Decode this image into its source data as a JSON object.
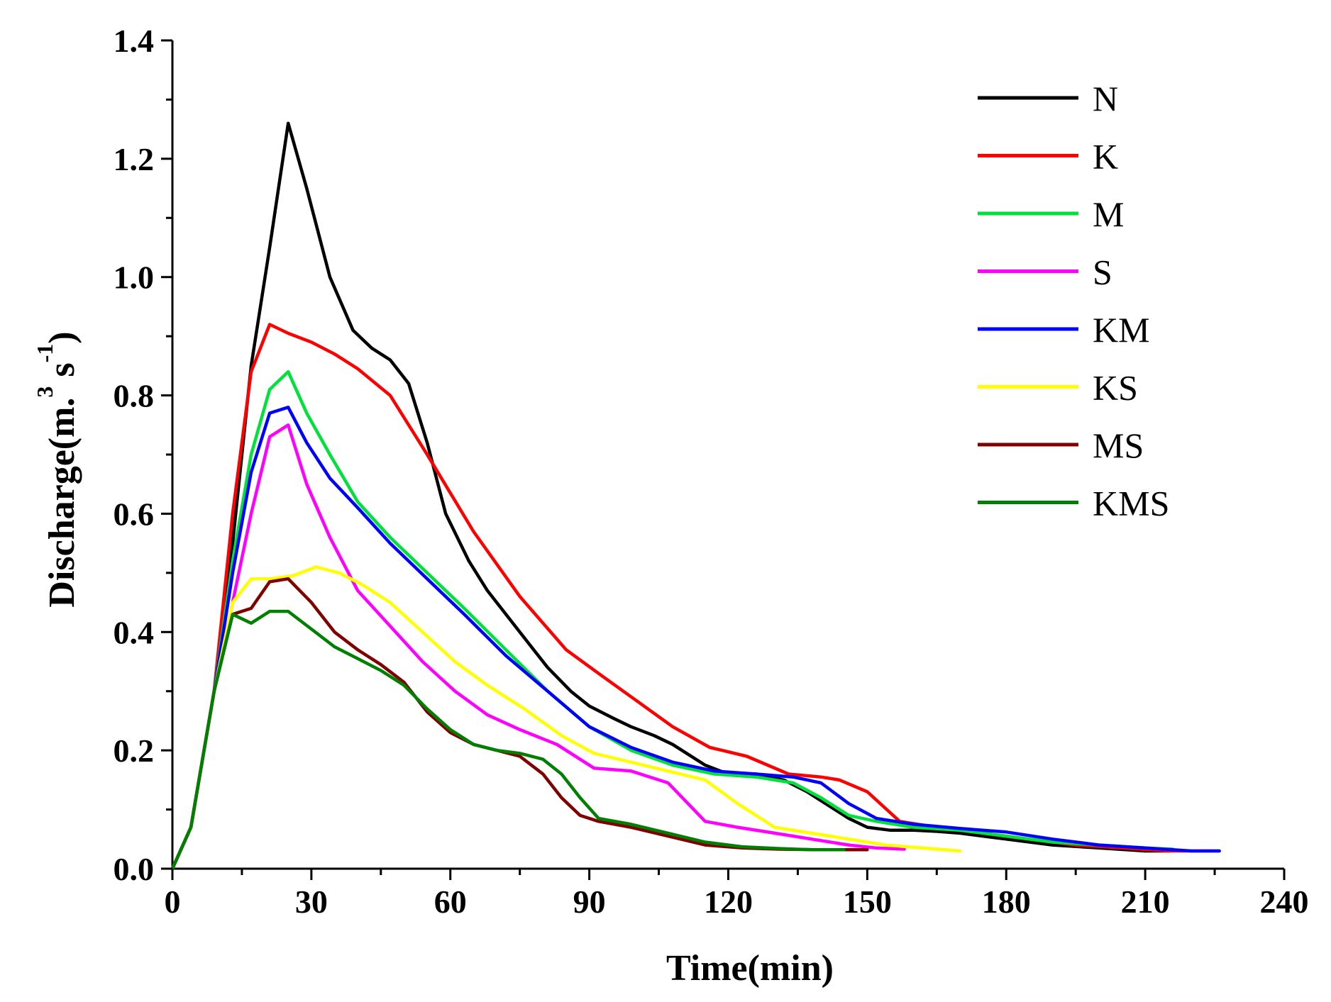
{
  "chart_data": {
    "type": "line",
    "title": "",
    "xlabel": "Time(min)",
    "ylabel": {
      "main": "Discharge(m.",
      "sup1": "3",
      "mid": " s",
      "sup2": "-1",
      "close": ")"
    },
    "xlim": [
      0,
      240
    ],
    "ylim": [
      0,
      1.4
    ],
    "xticks": [
      0,
      30,
      60,
      90,
      120,
      150,
      180,
      210,
      240
    ],
    "yticks": [
      0.0,
      0.2,
      0.4,
      0.6,
      0.8,
      1.0,
      1.2,
      1.4
    ],
    "xtick_labels": [
      "0",
      "30",
      "60",
      "90",
      "120",
      "150",
      "180",
      "210",
      "240"
    ],
    "ytick_labels": [
      "0.0",
      "0.2",
      "0.4",
      "0.6",
      "0.8",
      "1.0",
      "1.2",
      "1.4"
    ],
    "grid": false,
    "legend_position": "top-right",
    "series": [
      {
        "name": "N",
        "color": "#000000",
        "points": [
          [
            0,
            0
          ],
          [
            4,
            0.07
          ],
          [
            9,
            0.3
          ],
          [
            13,
            0.55
          ],
          [
            17,
            0.85
          ],
          [
            21,
            1.05
          ],
          [
            25,
            1.26
          ],
          [
            29,
            1.15
          ],
          [
            34,
            1.0
          ],
          [
            39,
            0.91
          ],
          [
            43,
            0.88
          ],
          [
            47,
            0.86
          ],
          [
            51,
            0.82
          ],
          [
            55,
            0.72
          ],
          [
            59,
            0.6
          ],
          [
            64,
            0.52
          ],
          [
            68,
            0.47
          ],
          [
            73,
            0.42
          ],
          [
            77,
            0.38
          ],
          [
            81,
            0.34
          ],
          [
            86,
            0.3
          ],
          [
            90,
            0.275
          ],
          [
            95,
            0.255
          ],
          [
            99,
            0.24
          ],
          [
            104,
            0.225
          ],
          [
            108,
            0.21
          ],
          [
            115,
            0.175
          ],
          [
            120,
            0.16
          ],
          [
            126,
            0.16
          ],
          [
            132,
            0.15
          ],
          [
            137,
            0.13
          ],
          [
            141,
            0.11
          ],
          [
            146,
            0.085
          ],
          [
            150,
            0.07
          ],
          [
            155,
            0.065
          ],
          [
            160,
            0.065
          ],
          [
            165,
            0.063
          ],
          [
            170,
            0.06
          ],
          [
            175,
            0.055
          ],
          [
            180,
            0.05
          ],
          [
            190,
            0.04
          ],
          [
            200,
            0.035
          ],
          [
            210,
            0.03
          ],
          [
            215,
            0.03
          ]
        ]
      },
      {
        "name": "K",
        "color": "#ff0000",
        "points": [
          [
            0,
            0
          ],
          [
            4,
            0.07
          ],
          [
            9,
            0.3
          ],
          [
            13,
            0.6
          ],
          [
            17,
            0.84
          ],
          [
            21,
            0.92
          ],
          [
            25,
            0.905
          ],
          [
            30,
            0.89
          ],
          [
            35,
            0.87
          ],
          [
            40,
            0.845
          ],
          [
            47,
            0.8
          ],
          [
            55,
            0.7
          ],
          [
            65,
            0.57
          ],
          [
            75,
            0.46
          ],
          [
            85,
            0.37
          ],
          [
            92,
            0.33
          ],
          [
            100,
            0.285
          ],
          [
            108,
            0.24
          ],
          [
            116,
            0.205
          ],
          [
            124,
            0.19
          ],
          [
            133,
            0.16
          ],
          [
            140,
            0.155
          ],
          [
            144,
            0.15
          ],
          [
            150,
            0.13
          ],
          [
            157,
            0.08
          ],
          [
            165,
            0.07
          ],
          [
            175,
            0.06
          ],
          [
            185,
            0.05
          ],
          [
            195,
            0.04
          ],
          [
            205,
            0.035
          ],
          [
            215,
            0.03
          ],
          [
            226,
            0.03
          ]
        ]
      },
      {
        "name": "M",
        "color": "#00e13c",
        "points": [
          [
            0,
            0
          ],
          [
            4,
            0.07
          ],
          [
            9,
            0.3
          ],
          [
            13,
            0.52
          ],
          [
            17,
            0.7
          ],
          [
            21,
            0.81
          ],
          [
            25,
            0.84
          ],
          [
            29,
            0.77
          ],
          [
            34,
            0.7
          ],
          [
            40,
            0.62
          ],
          [
            47,
            0.56
          ],
          [
            55,
            0.5
          ],
          [
            63,
            0.44
          ],
          [
            72,
            0.37
          ],
          [
            81,
            0.3
          ],
          [
            90,
            0.24
          ],
          [
            99,
            0.2
          ],
          [
            108,
            0.175
          ],
          [
            117,
            0.16
          ],
          [
            126,
            0.155
          ],
          [
            134,
            0.145
          ],
          [
            140,
            0.12
          ],
          [
            146,
            0.09
          ],
          [
            152,
            0.08
          ],
          [
            160,
            0.07
          ],
          [
            170,
            0.065
          ],
          [
            180,
            0.055
          ],
          [
            190,
            0.045
          ],
          [
            200,
            0.04
          ],
          [
            210,
            0.035
          ],
          [
            216,
            0.033
          ]
        ]
      },
      {
        "name": "S",
        "color": "#ff00ff",
        "points": [
          [
            0,
            0
          ],
          [
            4,
            0.07
          ],
          [
            9,
            0.3
          ],
          [
            13,
            0.45
          ],
          [
            17,
            0.6
          ],
          [
            21,
            0.73
          ],
          [
            25,
            0.75
          ],
          [
            29,
            0.65
          ],
          [
            34,
            0.56
          ],
          [
            40,
            0.47
          ],
          [
            47,
            0.41
          ],
          [
            54,
            0.35
          ],
          [
            61,
            0.3
          ],
          [
            68,
            0.26
          ],
          [
            75,
            0.235
          ],
          [
            83,
            0.21
          ],
          [
            91,
            0.17
          ],
          [
            99,
            0.165
          ],
          [
            107,
            0.145
          ],
          [
            115,
            0.08
          ],
          [
            122,
            0.07
          ],
          [
            130,
            0.06
          ],
          [
            138,
            0.05
          ],
          [
            146,
            0.04
          ],
          [
            152,
            0.035
          ],
          [
            158,
            0.033
          ]
        ]
      },
      {
        "name": "KM",
        "color": "#0000ff",
        "points": [
          [
            0,
            0
          ],
          [
            4,
            0.07
          ],
          [
            9,
            0.3
          ],
          [
            13,
            0.5
          ],
          [
            17,
            0.67
          ],
          [
            21,
            0.77
          ],
          [
            25,
            0.78
          ],
          [
            29,
            0.72
          ],
          [
            34,
            0.66
          ],
          [
            40,
            0.61
          ],
          [
            47,
            0.55
          ],
          [
            55,
            0.49
          ],
          [
            63,
            0.43
          ],
          [
            72,
            0.36
          ],
          [
            81,
            0.3
          ],
          [
            90,
            0.24
          ],
          [
            99,
            0.205
          ],
          [
            108,
            0.18
          ],
          [
            117,
            0.165
          ],
          [
            126,
            0.16
          ],
          [
            134,
            0.155
          ],
          [
            140,
            0.145
          ],
          [
            146,
            0.11
          ],
          [
            152,
            0.085
          ],
          [
            160,
            0.075
          ],
          [
            170,
            0.068
          ],
          [
            180,
            0.062
          ],
          [
            190,
            0.05
          ],
          [
            200,
            0.04
          ],
          [
            210,
            0.035
          ],
          [
            220,
            0.03
          ],
          [
            226,
            0.03
          ]
        ]
      },
      {
        "name": "KS",
        "color": "#ffff00",
        "points": [
          [
            0,
            0
          ],
          [
            4,
            0.07
          ],
          [
            9,
            0.3
          ],
          [
            13,
            0.45
          ],
          [
            17,
            0.49
          ],
          [
            21,
            0.49
          ],
          [
            26,
            0.495
          ],
          [
            31,
            0.51
          ],
          [
            36,
            0.5
          ],
          [
            41,
            0.48
          ],
          [
            47,
            0.45
          ],
          [
            54,
            0.4
          ],
          [
            61,
            0.35
          ],
          [
            68,
            0.31
          ],
          [
            76,
            0.27
          ],
          [
            84,
            0.225
          ],
          [
            91,
            0.195
          ],
          [
            99,
            0.18
          ],
          [
            107,
            0.165
          ],
          [
            115,
            0.15
          ],
          [
            122,
            0.11
          ],
          [
            130,
            0.07
          ],
          [
            138,
            0.06
          ],
          [
            146,
            0.05
          ],
          [
            154,
            0.04
          ],
          [
            162,
            0.035
          ],
          [
            170,
            0.03
          ]
        ]
      },
      {
        "name": "MS",
        "color": "#800000",
        "points": [
          [
            0,
            0
          ],
          [
            4,
            0.07
          ],
          [
            9,
            0.3
          ],
          [
            13,
            0.43
          ],
          [
            17,
            0.44
          ],
          [
            21,
            0.485
          ],
          [
            25,
            0.49
          ],
          [
            30,
            0.45
          ],
          [
            35,
            0.4
          ],
          [
            40,
            0.37
          ],
          [
            45,
            0.345
          ],
          [
            50,
            0.315
          ],
          [
            55,
            0.265
          ],
          [
            60,
            0.23
          ],
          [
            65,
            0.21
          ],
          [
            70,
            0.2
          ],
          [
            75,
            0.19
          ],
          [
            80,
            0.16
          ],
          [
            84,
            0.12
          ],
          [
            88,
            0.09
          ],
          [
            92,
            0.08
          ],
          [
            99,
            0.07
          ],
          [
            107,
            0.055
          ],
          [
            115,
            0.04
          ],
          [
            123,
            0.035
          ],
          [
            131,
            0.033
          ],
          [
            140,
            0.032
          ],
          [
            150,
            0.032
          ]
        ]
      },
      {
        "name": "KMS",
        "color": "#008000",
        "points": [
          [
            0,
            0
          ],
          [
            4,
            0.07
          ],
          [
            9,
            0.3
          ],
          [
            13,
            0.43
          ],
          [
            17,
            0.415
          ],
          [
            21,
            0.435
          ],
          [
            25,
            0.435
          ],
          [
            30,
            0.405
          ],
          [
            35,
            0.375
          ],
          [
            40,
            0.355
          ],
          [
            45,
            0.335
          ],
          [
            50,
            0.31
          ],
          [
            55,
            0.27
          ],
          [
            60,
            0.235
          ],
          [
            65,
            0.21
          ],
          [
            70,
            0.2
          ],
          [
            75,
            0.195
          ],
          [
            80,
            0.185
          ],
          [
            84,
            0.16
          ],
          [
            88,
            0.12
          ],
          [
            92,
            0.085
          ],
          [
            99,
            0.075
          ],
          [
            107,
            0.06
          ],
          [
            115,
            0.045
          ],
          [
            123,
            0.037
          ],
          [
            131,
            0.034
          ],
          [
            138,
            0.032
          ],
          [
            145,
            0.032
          ]
        ]
      }
    ]
  }
}
